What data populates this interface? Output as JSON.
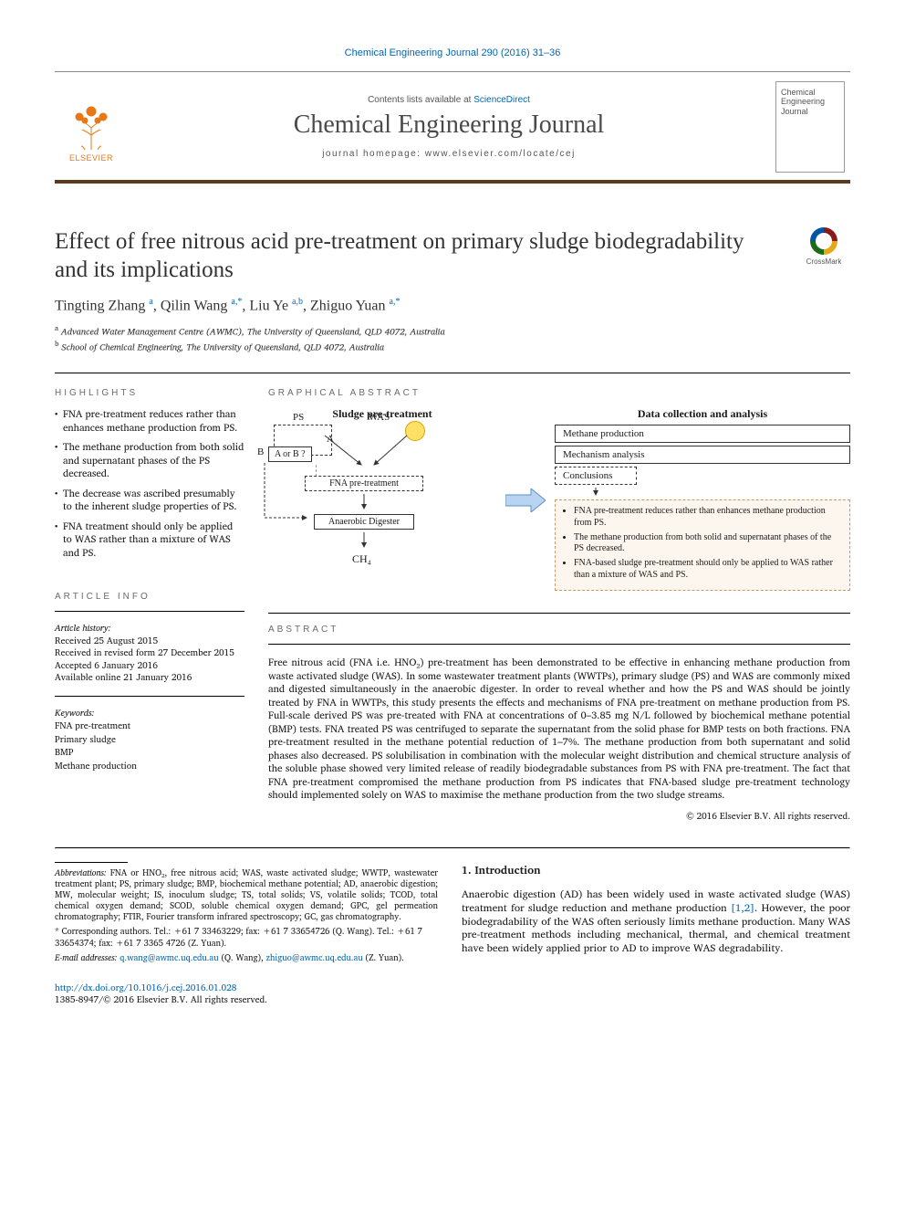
{
  "citation": "Chemical Engineering Journal 290 (2016) 31–36",
  "masthead": {
    "contents_prefix": "Contents lists available at ",
    "contents_link": "ScienceDirect",
    "journal_title": "Chemical Engineering Journal",
    "homepage": "journal homepage: www.elsevier.com/locate/cej",
    "publisher": "ELSEVIER",
    "cover_title": "Chemical Engineering Journal"
  },
  "crossmark_label": "CrossMark",
  "title": "Effect of free nitrous acid pre-treatment on primary sludge biodegradability and its implications",
  "authors_html": "Tingting Zhang <sup>a</sup>, Qilin Wang <sup>a,*</sup>, Liu Ye <sup>a,b</sup>, Zhiguo Yuan <sup>a,*</sup>",
  "affiliations": [
    "a Advanced Water Management Centre (AWMC), The University of Queensland, QLD 4072, Australia",
    "b School of Chemical Engineering, The University of Queensland, QLD 4072, Australia"
  ],
  "sections": {
    "highlights": "HIGHLIGHTS",
    "graphical": "GRAPHICAL ABSTRACT",
    "article_info": "ARTICLE INFO",
    "abstract": "ABSTRACT"
  },
  "highlights": [
    "FNA pre-treatment reduces rather than enhances methane production from PS.",
    "The methane production from both solid and supernatant phases of the PS decreased.",
    "The decrease was ascribed presumably to the inherent sludge properties of PS.",
    "FNA treatment should only be applied to WAS rather than a mixture of WAS and PS."
  ],
  "article_info": {
    "history_label": "Article history:",
    "history": [
      "Received 25 August 2015",
      "Received in revised form 27 December 2015",
      "Accepted 6 January 2016",
      "Available online 21 January 2016"
    ],
    "keywords_label": "Keywords:",
    "keywords": [
      "FNA pre-treatment",
      "Primary sludge",
      "BMP",
      "Methane production"
    ]
  },
  "graphical_abstract": {
    "left_title": "Sludge pre-treatment",
    "ps": "PS",
    "was": "WAS",
    "aorb": "A or B ?",
    "a": "A",
    "b": "B",
    "fna": "FNA pre-treatment",
    "digester": "Anaerobic Digester",
    "ch4": "CH₄",
    "right_title": "Data collection and analysis",
    "box_methane": "Methane production",
    "box_mechanism": "Mechanism analysis",
    "box_conclusions": "Conclusions",
    "conclusions": [
      "FNA pre-treatment reduces rather than enhances methane production from PS.",
      "The methane production from both solid and supernatant phases of the PS decreased.",
      "FNA-based sludge pre-treatment should only be applied to WAS rather than a mixture of WAS and PS."
    ],
    "colors": {
      "conclusion_bg": "#fdf6ee",
      "conclusion_border": "#cc9966",
      "arrow_fill": "#b8d4f0",
      "arrow_stroke": "#5a8fc8",
      "sun_fill": "#ffe066"
    }
  },
  "abstract": "Free nitrous acid (FNA i.e. HNO₂) pre-treatment has been demonstrated to be effective in enhancing methane production from waste activated sludge (WAS). In some wastewater treatment plants (WWTPs), primary sludge (PS) and WAS are commonly mixed and digested simultaneously in the anaerobic digester. In order to reveal whether and how the PS and WAS should be jointly treated by FNA in WWTPs, this study presents the effects and mechanisms of FNA pre-treatment on methane production from PS. Full-scale derived PS was pre-treated with FNA at concentrations of 0–3.85 mg N/L followed by biochemical methane potential (BMP) tests. FNA treated PS was centrifuged to separate the supernatant from the solid phase for BMP tests on both fractions. FNA pre-treatment resulted in the methane potential reduction of 1–7%. The methane production from both supernatant and solid phases also decreased. PS solubilisation in combination with the molecular weight distribution and chemical structure analysis of the soluble phase showed very limited release of readily biodegradable substances from PS with FNA pre-treatment. The fact that FNA pre-treatment compromised the methane production from PS indicates that FNA-based sludge pre-treatment technology should implemented solely on WAS to maximise the methane production from the two sludge streams.",
  "copyright": "© 2016 Elsevier B.V. All rights reserved.",
  "footer": {
    "abbrev_label": "Abbreviations:",
    "abbrev": " FNA or HNO₂, free nitrous acid; WAS, waste activated sludge; WWTP, wastewater treatment plant; PS, primary sludge; BMP, biochemical methane potential; AD, anaerobic digestion; MW, molecular weight; IS, inoculum sludge; TS, total solids; VS, volatile solids; TCOD, total chemical oxygen demand; SCOD, soluble chemical oxygen demand; GPC, gel permeation chromatography; FTIR, Fourier transform infrared spectroscopy; GC, gas chromatography.",
    "corresponding": "* Corresponding authors. Tel.: +61 7 33463229; fax: +61 7 33654726 (Q. Wang). Tel.: +61 7 33654374; fax: +61 7 3365 4726 (Z. Yuan).",
    "email_label": "E-mail addresses:",
    "emails": "q.wang@awmc.uq.edu.au (Q. Wang), zhiguo@awmc.uq.edu.au (Z. Yuan).",
    "email1": "q.wang@awmc.uq.edu.au",
    "email1_who": " (Q. Wang), ",
    "email2": "zhiguo@awmc.uq.edu.au",
    "email2_who": " (Z. Yuan)."
  },
  "intro": {
    "heading": "1. Introduction",
    "text_pre": "Anaerobic digestion (AD) has been widely used in waste activated sludge (WAS) treatment for sludge reduction and methane production ",
    "refs": "[1,2]",
    "text_post": ". However, the poor biodegradability of the WAS often seriously limits methane production. Many WAS pre-treatment methods including mechanical, thermal, and chemical treatment have been widely applied prior to AD to improve WAS degradability."
  },
  "doi": {
    "url": "http://dx.doi.org/10.1016/j.cej.2016.01.028",
    "issn_line": "1385-8947/© 2016 Elsevier B.V. All rights reserved."
  },
  "colors": {
    "link": "#0066b3",
    "accent_orange": "#e67817",
    "masthead_rule": "#5b3a1a",
    "text_gray": "#6a6a6a"
  }
}
